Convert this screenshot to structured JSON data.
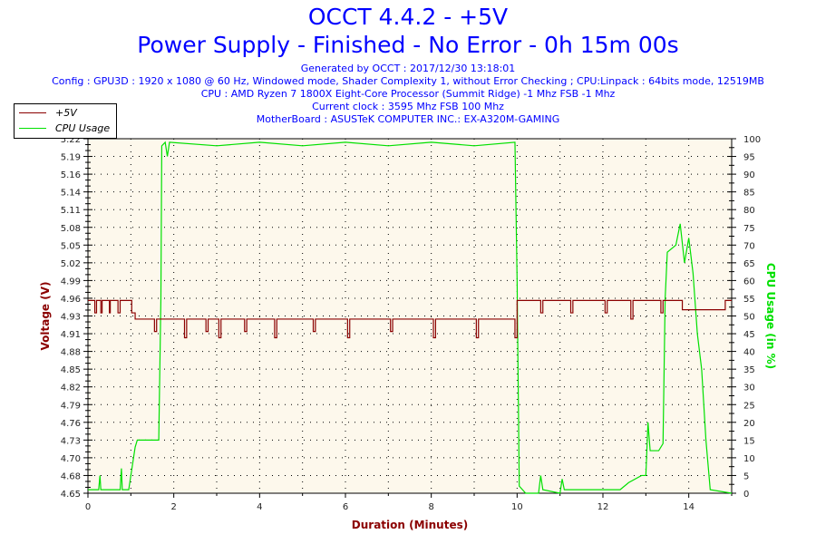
{
  "title": "OCCT 4.4.2 - +5V",
  "subtitle": "Power Supply - Finished - No Error - 0h 15m 00s",
  "info": [
    "Generated by OCCT : 2017/12/30 13:18:01",
    "Config : GPU3D : 1920 x 1080 @ 60 Hz, Windowed mode, Shader Complexity 1, without Error Checking ; CPU:Linpack : 64bits mode, 12519MB",
    "CPU : AMD Ryzen 7 1800X Eight-Core Processor (Summit Ridge) -1 Mhz FSB -1 Mhz",
    "Current clock : 3595 Mhz FSB 100 Mhz",
    "MotherBoard : ASUSTeK COMPUTER INC.: EX-A320M-GAMING"
  ],
  "chart_data": {
    "type": "line",
    "xlabel": "Duration (Minutes)",
    "ylabel": "Voltage (V)",
    "y2label": "CPU Usage (in %)",
    "xlim": [
      0,
      15
    ],
    "ylim": [
      4.65,
      5.22
    ],
    "y2lim": [
      0,
      100
    ],
    "xticks": [
      "0",
      "2",
      "4",
      "6",
      "8",
      "10",
      "12",
      "14"
    ],
    "yticks": [
      "5.22",
      "5.19",
      "5.16",
      "5.14",
      "5.11",
      "5.08",
      "5.05",
      "5.02",
      "4.99",
      "4.96",
      "4.93",
      "4.91",
      "4.88",
      "4.85",
      "4.82",
      "4.79",
      "4.76",
      "4.73",
      "4.70",
      "4.68",
      "4.65"
    ],
    "y2ticks": [
      "100",
      "95",
      "90",
      "85",
      "80",
      "75",
      "70",
      "65",
      "60",
      "55",
      "50",
      "45",
      "40",
      "35",
      "30",
      "25",
      "20",
      "15",
      "10",
      "5",
      "0"
    ],
    "grid": true,
    "legend": "top-left",
    "colors": {
      "voltage": "#8b0000",
      "cpu": "#00e000",
      "plot_bg": "#fdf8ec",
      "text": "#0000ff"
    },
    "series": [
      {
        "name": "+5V",
        "axis": "left",
        "points": [
          [
            0,
            4.96
          ],
          [
            0.15,
            4.96
          ],
          [
            0.16,
            4.94
          ],
          [
            0.2,
            4.96
          ],
          [
            0.3,
            4.94
          ],
          [
            0.33,
            4.96
          ],
          [
            0.5,
            4.94
          ],
          [
            0.52,
            4.96
          ],
          [
            0.7,
            4.94
          ],
          [
            0.75,
            4.96
          ],
          [
            1.0,
            4.96
          ],
          [
            1.02,
            4.94
          ],
          [
            1.1,
            4.93
          ],
          [
            1.5,
            4.93
          ],
          [
            1.55,
            4.91
          ],
          [
            1.6,
            4.93
          ],
          [
            2.2,
            4.93
          ],
          [
            2.25,
            4.9
          ],
          [
            2.3,
            4.93
          ],
          [
            2.7,
            4.93
          ],
          [
            2.75,
            4.91
          ],
          [
            2.8,
            4.93
          ],
          [
            3.0,
            4.93
          ],
          [
            3.05,
            4.9
          ],
          [
            3.1,
            4.93
          ],
          [
            3.6,
            4.93
          ],
          [
            3.65,
            4.91
          ],
          [
            3.7,
            4.93
          ],
          [
            4.3,
            4.93
          ],
          [
            4.35,
            4.9
          ],
          [
            4.4,
            4.93
          ],
          [
            5.2,
            4.93
          ],
          [
            5.25,
            4.91
          ],
          [
            5.3,
            4.93
          ],
          [
            6.0,
            4.93
          ],
          [
            6.05,
            4.9
          ],
          [
            6.1,
            4.93
          ],
          [
            7.0,
            4.93
          ],
          [
            7.05,
            4.91
          ],
          [
            7.1,
            4.93
          ],
          [
            8.0,
            4.93
          ],
          [
            8.05,
            4.9
          ],
          [
            8.1,
            4.93
          ],
          [
            9.0,
            4.93
          ],
          [
            9.05,
            4.9
          ],
          [
            9.1,
            4.93
          ],
          [
            9.9,
            4.93
          ],
          [
            9.95,
            4.9
          ],
          [
            10.0,
            4.96
          ],
          [
            10.5,
            4.96
          ],
          [
            10.55,
            4.94
          ],
          [
            10.6,
            4.96
          ],
          [
            11.2,
            4.96
          ],
          [
            11.25,
            4.94
          ],
          [
            11.3,
            4.96
          ],
          [
            12.0,
            4.96
          ],
          [
            12.05,
            4.94
          ],
          [
            12.1,
            4.96
          ],
          [
            12.6,
            4.96
          ],
          [
            12.65,
            4.93
          ],
          [
            12.7,
            4.96
          ],
          [
            13.3,
            4.96
          ],
          [
            13.35,
            4.94
          ],
          [
            13.4,
            4.96
          ],
          [
            13.8,
            4.96
          ],
          [
            13.85,
            4.945
          ],
          [
            14.8,
            4.945
          ],
          [
            14.85,
            4.96
          ],
          [
            15,
            4.96
          ]
        ]
      },
      {
        "name": "CPU Usage",
        "axis": "right",
        "points": [
          [
            0,
            1
          ],
          [
            0.25,
            1
          ],
          [
            0.28,
            5
          ],
          [
            0.3,
            1
          ],
          [
            0.75,
            1
          ],
          [
            0.78,
            7
          ],
          [
            0.8,
            1
          ],
          [
            0.95,
            1
          ],
          [
            1.1,
            13
          ],
          [
            1.15,
            15
          ],
          [
            1.65,
            15
          ],
          [
            1.7,
            55
          ],
          [
            1.72,
            98
          ],
          [
            1.8,
            99
          ],
          [
            1.85,
            95
          ],
          [
            1.9,
            99
          ],
          [
            3,
            98
          ],
          [
            4,
            99
          ],
          [
            5,
            98
          ],
          [
            6,
            99
          ],
          [
            7,
            98
          ],
          [
            8,
            99
          ],
          [
            9,
            98
          ],
          [
            9.95,
            99
          ],
          [
            10.0,
            60
          ],
          [
            10.05,
            2
          ],
          [
            10.2,
            0
          ],
          [
            10.5,
            0
          ],
          [
            10.55,
            5
          ],
          [
            10.6,
            1
          ],
          [
            11,
            0
          ],
          [
            11.05,
            4
          ],
          [
            11.1,
            1
          ],
          [
            12.4,
            1
          ],
          [
            12.6,
            3
          ],
          [
            12.9,
            5
          ],
          [
            13.0,
            5
          ],
          [
            13.05,
            20
          ],
          [
            13.1,
            12
          ],
          [
            13.3,
            12
          ],
          [
            13.4,
            14
          ],
          [
            13.45,
            55
          ],
          [
            13.5,
            68
          ],
          [
            13.7,
            70
          ],
          [
            13.8,
            76
          ],
          [
            13.9,
            65
          ],
          [
            14.0,
            72
          ],
          [
            14.1,
            62
          ],
          [
            14.2,
            45
          ],
          [
            14.3,
            35
          ],
          [
            14.4,
            15
          ],
          [
            14.5,
            1
          ],
          [
            15,
            0
          ]
        ]
      }
    ]
  }
}
